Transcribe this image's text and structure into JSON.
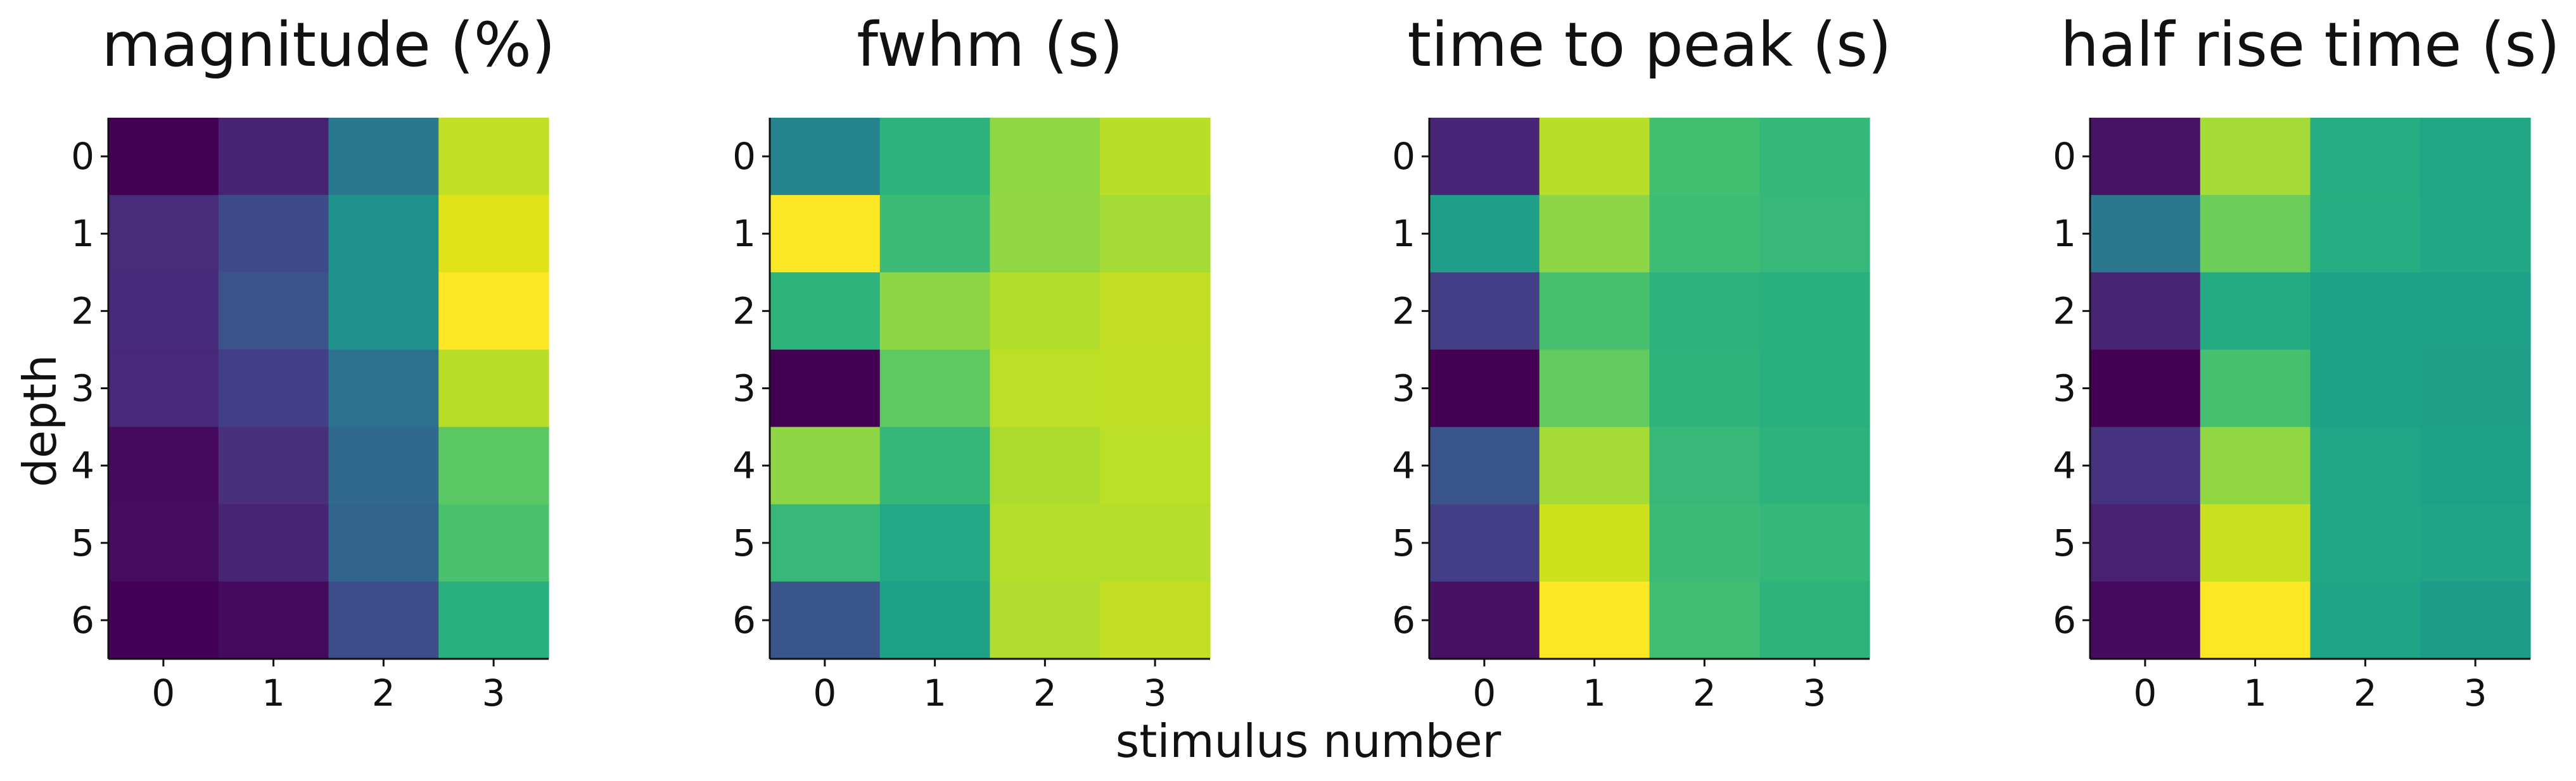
{
  "figure": {
    "xlabel": "stimulus number",
    "ylabel": "depth",
    "colormap": "viridis"
  },
  "chart_data": [
    {
      "type": "heatmap",
      "title": "magnitude (%)",
      "x_ticks": [
        "0",
        "1",
        "2",
        "3"
      ],
      "y_ticks": [
        "0",
        "1",
        "2",
        "3",
        "4",
        "5",
        "6"
      ],
      "colors": [
        [
          "#440154",
          "#482373",
          "#2a788e",
          "#c0df25"
        ],
        [
          "#472c7a",
          "#3e4a89",
          "#20928c",
          "#e0e318"
        ],
        [
          "#472a7a",
          "#3b528b",
          "#21918c",
          "#fde725"
        ],
        [
          "#482878",
          "#433e85",
          "#2c728e",
          "#bade28"
        ],
        [
          "#460b5e",
          "#48307b",
          "#31688e",
          "#5cc863"
        ],
        [
          "#460c5f",
          "#482475",
          "#32658e",
          "#4ac16d"
        ],
        [
          "#440256",
          "#450a5d",
          "#3d4d8a",
          "#2ab07f"
        ]
      ]
    },
    {
      "type": "heatmap",
      "title": "fwhm (s)",
      "x_ticks": [
        "0",
        "1",
        "2",
        "3"
      ],
      "y_ticks": [
        "0",
        "1",
        "2",
        "3",
        "4",
        "5",
        "6"
      ],
      "colors": [
        [
          "#25838e",
          "#2db27d",
          "#8fd744",
          "#bade28"
        ],
        [
          "#fde725",
          "#3bbb75",
          "#90d743",
          "#a5db36"
        ],
        [
          "#2eb37c",
          "#8ed645",
          "#b2dd2d",
          "#c2df23"
        ],
        [
          "#440154",
          "#5ec962",
          "#bddf26",
          "#c0df25"
        ],
        [
          "#8ed645",
          "#35b779",
          "#addc30",
          "#bcdf27"
        ],
        [
          "#37b878",
          "#22a884",
          "#b5de2b",
          "#b5de2b"
        ],
        [
          "#3a548c",
          "#1fa187",
          "#b0dd2f",
          "#c2df23"
        ]
      ]
    },
    {
      "type": "heatmap",
      "title": "time to peak (s)",
      "x_ticks": [
        "0",
        "1",
        "2",
        "3"
      ],
      "y_ticks": [
        "0",
        "1",
        "2",
        "3",
        "4",
        "5",
        "6"
      ],
      "colors": [
        [
          "#482576",
          "#b8de29",
          "#42be71",
          "#35b779"
        ],
        [
          "#1f9e89",
          "#8ed645",
          "#3dbc74",
          "#37b878"
        ],
        [
          "#433e85",
          "#46c06f",
          "#2db27d",
          "#2ab07f"
        ],
        [
          "#440154",
          "#62cb5f",
          "#2eb37c",
          "#2ab07f"
        ],
        [
          "#3a548c",
          "#a5db36",
          "#37b878",
          "#2db27d"
        ],
        [
          "#433e85",
          "#cde11d",
          "#3bbb75",
          "#35b779"
        ],
        [
          "#471164",
          "#fde725",
          "#40bd72",
          "#2eb37c"
        ]
      ]
    },
    {
      "type": "heatmap",
      "title": "half rise time (s)",
      "x_ticks": [
        "0",
        "1",
        "2",
        "3"
      ],
      "y_ticks": [
        "0",
        "1",
        "2",
        "3",
        "4",
        "5",
        "6"
      ],
      "colors": [
        [
          "#471365",
          "#a5db36",
          "#27ad81",
          "#21a585"
        ],
        [
          "#2a788e",
          "#6ccd5a",
          "#27ad81",
          "#22a785"
        ],
        [
          "#482475",
          "#25ab82",
          "#1fa088",
          "#1fa088"
        ],
        [
          "#440154",
          "#46c06f",
          "#1fa088",
          "#1f9f88"
        ],
        [
          "#46337f",
          "#90d743",
          "#21a685",
          "#1fa188"
        ],
        [
          "#482173",
          "#c8e020",
          "#22a785",
          "#20a386"
        ],
        [
          "#460b5e",
          "#fde725",
          "#20a486",
          "#1e9c89"
        ]
      ]
    }
  ]
}
